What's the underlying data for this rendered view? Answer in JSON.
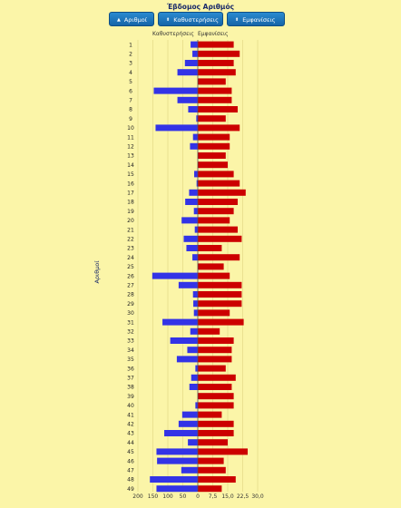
{
  "header": {
    "title": "Έβδομος Αριθμός",
    "buttons": [
      {
        "label": "Αριθμοί",
        "icon": "caret-up-icon"
      },
      {
        "label": "Καθυστερήσεις",
        "icon": "sort-icon"
      },
      {
        "label": "Εμφανίσεις",
        "icon": "sort-icon"
      }
    ]
  },
  "chart_data": {
    "type": "bar",
    "orientation": "horizontal-diverging",
    "ylabel": "Αριθμοί",
    "left_axis": {
      "label": "Καθυστερήσεις",
      "ticks": [
        200,
        150,
        100,
        50,
        0
      ],
      "max": 200,
      "color": "#3333e6"
    },
    "right_axis": {
      "label": "Εμφανίσεις",
      "ticks": [
        "0",
        "7,5",
        "15,0",
        "22,5",
        "30,0"
      ],
      "max": 30,
      "color": "#cc0000"
    },
    "categories": [
      "1",
      "2",
      "3",
      "4",
      "5",
      "6",
      "7",
      "8",
      "9",
      "10",
      "11",
      "12",
      "13",
      "14",
      "15",
      "16",
      "17",
      "18",
      "19",
      "20",
      "21",
      "22",
      "23",
      "24",
      "25",
      "26",
      "27",
      "28",
      "29",
      "30",
      "31",
      "32",
      "33",
      "34",
      "35",
      "36",
      "37",
      "38",
      "39",
      "40",
      "41",
      "42",
      "43",
      "44",
      "45",
      "46",
      "47",
      "48",
      "49"
    ],
    "series": [
      {
        "name": "Καθυστερήσεις",
        "values": [
          24,
          18,
          43,
          68,
          0,
          147,
          68,
          32,
          5,
          141,
          16,
          26,
          0,
          0,
          12,
          4,
          29,
          42,
          13,
          54,
          10,
          47,
          38,
          18,
          0,
          152,
          64,
          16,
          15,
          13,
          118,
          25,
          92,
          35,
          70,
          8,
          22,
          28,
          0,
          8,
          52,
          64,
          112,
          33,
          138,
          136,
          55,
          160,
          138
        ]
      },
      {
        "name": "Εμφανίσεις",
        "values": [
          18,
          21,
          18,
          19,
          14,
          17,
          17,
          20,
          14,
          21,
          16,
          16,
          14,
          15,
          18,
          21,
          24,
          20,
          18,
          16,
          20,
          22,
          12,
          21,
          13,
          16,
          22,
          22,
          22,
          16,
          23,
          11,
          18,
          17,
          17,
          14,
          19,
          17,
          18,
          18,
          12,
          18,
          18,
          15,
          25,
          13,
          14,
          19,
          12
        ]
      }
    ],
    "grid": true
  }
}
